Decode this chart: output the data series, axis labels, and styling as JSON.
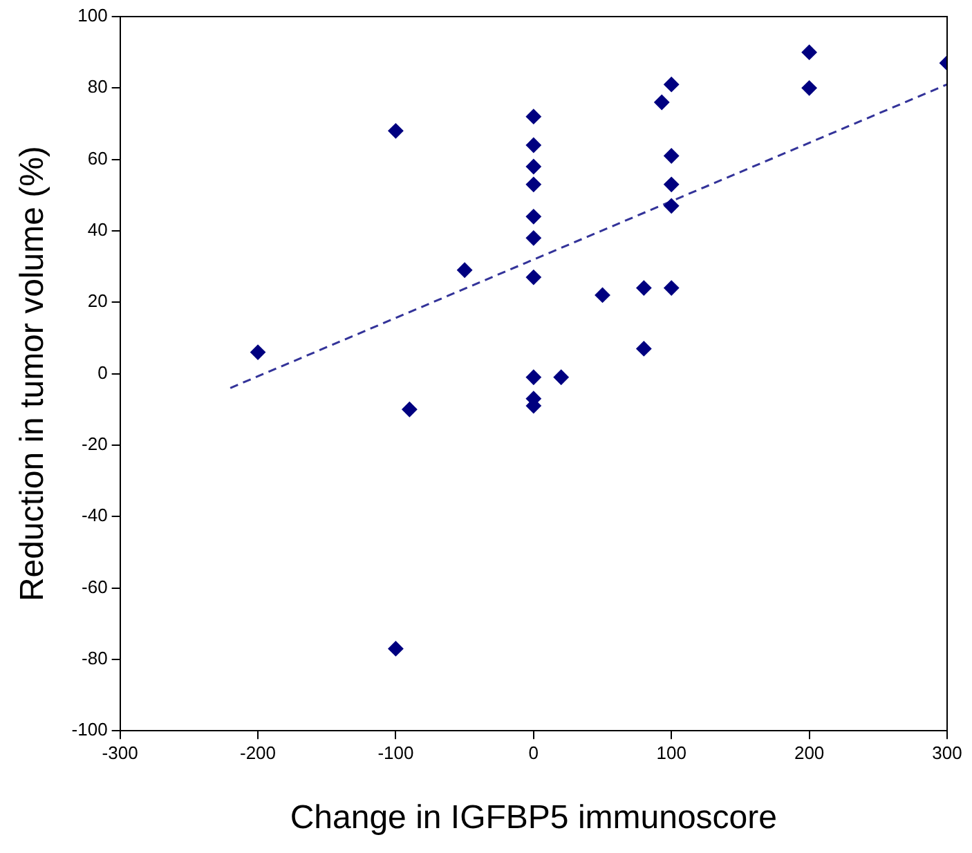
{
  "chart_data": {
    "type": "scatter",
    "xlabel": "Change in IGFBP5 immunoscore",
    "ylabel": "Reduction in tumor volume (%)",
    "xlim": [
      -300,
      300
    ],
    "xticks": [
      -300,
      -200,
      -100,
      0,
      100,
      200,
      300
    ],
    "ylim": [
      -100,
      100
    ],
    "yticks": [
      -100,
      -80,
      -60,
      -40,
      -20,
      0,
      20,
      40,
      60,
      80,
      100
    ],
    "grid": false,
    "legend": false,
    "marker": "diamond",
    "series": [
      {
        "color": "#000080",
        "x": [
          -200,
          -100,
          -90,
          -100,
          -50,
          0,
          0,
          0,
          0,
          0,
          0,
          0,
          0,
          0,
          0,
          20,
          50,
          80,
          80,
          93,
          100,
          100,
          100,
          100,
          100,
          200,
          200,
          300
        ],
        "values": [
          6,
          68,
          -10,
          -77,
          29,
          72,
          64,
          58,
          53,
          44,
          38,
          27,
          -1,
          -7,
          -9,
          -1,
          22,
          24,
          7,
          76,
          81,
          61,
          53,
          47,
          24,
          90,
          80,
          87
        ]
      },
      {
        "type": "line",
        "color": "#333399",
        "line_style": "dashed",
        "marker": "none",
        "x": [
          -220,
          300
        ],
        "values": [
          -4,
          81
        ]
      }
    ]
  }
}
